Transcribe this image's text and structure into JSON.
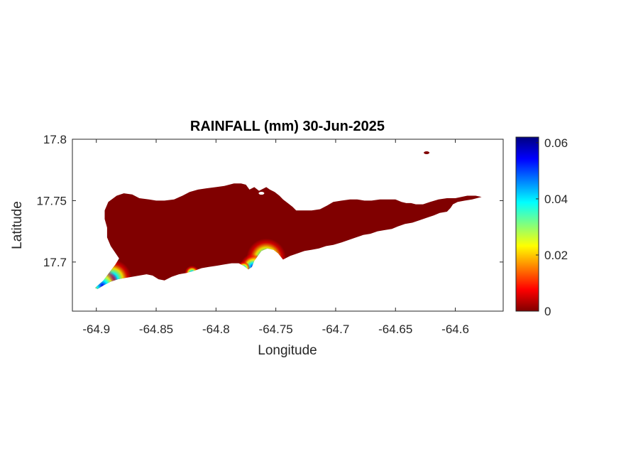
{
  "chart_data": {
    "type": "heatmap",
    "title": "RAINFALL (mm) 30-Jun-2025",
    "xlabel": "Longitude",
    "ylabel": "Latitude",
    "xlim": [
      -64.92,
      -64.56
    ],
    "ylim": [
      17.66,
      17.8
    ],
    "xticks": [
      -64.9,
      -64.85,
      -64.8,
      -64.75,
      -64.7,
      -64.65,
      -64.6
    ],
    "xtick_labels": [
      "-64.9",
      "-64.85",
      "-64.8",
      "-64.75",
      "-64.7",
      "-64.65",
      "-64.6"
    ],
    "yticks": [
      17.7,
      17.75,
      17.8
    ],
    "ytick_labels": [
      "17.7",
      "17.75",
      "17.8"
    ],
    "colorbar": {
      "min": 0,
      "max": 0.062,
      "ticks": [
        0,
        0.02,
        0.04,
        0.06
      ],
      "tick_labels": [
        "0",
        "0.02",
        "0.04",
        "0.06"
      ],
      "colormap": "jet"
    },
    "background_value": 0,
    "background_color": "#800000",
    "grid": false,
    "land_outline": [
      [
        -64.901,
        17.679
      ],
      [
        -64.894,
        17.685
      ],
      [
        -64.888,
        17.693
      ],
      [
        -64.884,
        17.698
      ],
      [
        -64.881,
        17.703
      ],
      [
        -64.888,
        17.713
      ],
      [
        -64.891,
        17.72
      ],
      [
        -64.891,
        17.728
      ],
      [
        -64.893,
        17.735
      ],
      [
        -64.893,
        17.742
      ],
      [
        -64.89,
        17.749
      ],
      [
        -64.883,
        17.754
      ],
      [
        -64.877,
        17.756
      ],
      [
        -64.87,
        17.755
      ],
      [
        -64.864,
        17.752
      ],
      [
        -64.856,
        17.751
      ],
      [
        -64.85,
        17.75
      ],
      [
        -64.843,
        17.75
      ],
      [
        -64.835,
        17.751
      ],
      [
        -64.828,
        17.754
      ],
      [
        -64.822,
        17.757
      ],
      [
        -64.815,
        17.759
      ],
      [
        -64.808,
        17.76
      ],
      [
        -64.8,
        17.761
      ],
      [
        -64.793,
        17.762
      ],
      [
        -64.785,
        17.764
      ],
      [
        -64.779,
        17.764
      ],
      [
        -64.775,
        17.763
      ],
      [
        -64.772,
        17.759
      ],
      [
        -64.768,
        17.761
      ],
      [
        -64.764,
        17.758
      ],
      [
        -64.758,
        17.761
      ],
      [
        -64.755,
        17.759
      ],
      [
        -64.751,
        17.757
      ],
      [
        -64.747,
        17.754
      ],
      [
        -64.744,
        17.751
      ],
      [
        -64.74,
        17.748
      ],
      [
        -64.736,
        17.745
      ],
      [
        -64.733,
        17.742
      ],
      [
        -64.725,
        17.742
      ],
      [
        -64.72,
        17.742
      ],
      [
        -64.713,
        17.743
      ],
      [
        -64.707,
        17.746
      ],
      [
        -64.702,
        17.749
      ],
      [
        -64.695,
        17.75
      ],
      [
        -64.688,
        17.751
      ],
      [
        -64.682,
        17.751
      ],
      [
        -64.676,
        17.75
      ],
      [
        -64.67,
        17.75
      ],
      [
        -64.663,
        17.751
      ],
      [
        -64.656,
        17.751
      ],
      [
        -64.65,
        17.751
      ],
      [
        -64.645,
        17.749
      ],
      [
        -64.641,
        17.748
      ],
      [
        -64.637,
        17.748
      ],
      [
        -64.633,
        17.747
      ],
      [
        -64.627,
        17.747
      ],
      [
        -64.621,
        17.749
      ],
      [
        -64.614,
        17.751
      ],
      [
        -64.607,
        17.752
      ],
      [
        -64.6,
        17.752
      ],
      [
        -64.595,
        17.753
      ],
      [
        -64.59,
        17.754
      ],
      [
        -64.583,
        17.754
      ],
      [
        -64.578,
        17.753
      ],
      [
        -64.582,
        17.752
      ],
      [
        -64.586,
        17.751
      ],
      [
        -64.592,
        17.75
      ],
      [
        -64.598,
        17.749
      ],
      [
        -64.602,
        17.747
      ],
      [
        -64.604,
        17.744
      ],
      [
        -64.607,
        17.741
      ],
      [
        -64.613,
        17.74
      ],
      [
        -64.618,
        17.738
      ],
      [
        -64.624,
        17.736
      ],
      [
        -64.63,
        17.734
      ],
      [
        -64.636,
        17.732
      ],
      [
        -64.642,
        17.731
      ],
      [
        -64.648,
        17.729
      ],
      [
        -64.653,
        17.727
      ],
      [
        -64.659,
        17.726
      ],
      [
        -64.665,
        17.725
      ],
      [
        -64.671,
        17.723
      ],
      [
        -64.677,
        17.722
      ],
      [
        -64.683,
        17.72
      ],
      [
        -64.689,
        17.718
      ],
      [
        -64.695,
        17.716
      ],
      [
        -64.702,
        17.714
      ],
      [
        -64.708,
        17.713
      ],
      [
        -64.714,
        17.711
      ],
      [
        -64.72,
        17.71
      ],
      [
        -64.726,
        17.709
      ],
      [
        -64.732,
        17.707
      ],
      [
        -64.738,
        17.705
      ],
      [
        -64.744,
        17.702
      ],
      [
        -64.748,
        17.707
      ],
      [
        -64.752,
        17.71
      ],
      [
        -64.757,
        17.711
      ],
      [
        -64.762,
        17.709
      ],
      [
        -64.765,
        17.705
      ],
      [
        -64.768,
        17.701
      ],
      [
        -64.77,
        17.696
      ],
      [
        -64.773,
        17.694
      ],
      [
        -64.777,
        17.697
      ],
      [
        -64.781,
        17.699
      ],
      [
        -64.787,
        17.699
      ],
      [
        -64.793,
        17.698
      ],
      [
        -64.799,
        17.697
      ],
      [
        -64.806,
        17.696
      ],
      [
        -64.812,
        17.695
      ],
      [
        -64.818,
        17.693
      ],
      [
        -64.825,
        17.691
      ],
      [
        -64.831,
        17.69
      ],
      [
        -64.837,
        17.688
      ],
      [
        -64.843,
        17.685
      ],
      [
        -64.848,
        17.686
      ],
      [
        -64.853,
        17.689
      ],
      [
        -64.858,
        17.69
      ],
      [
        -64.864,
        17.689
      ],
      [
        -64.87,
        17.688
      ],
      [
        -64.876,
        17.687
      ],
      [
        -64.882,
        17.686
      ],
      [
        -64.888,
        17.684
      ],
      [
        -64.894,
        17.681
      ],
      [
        -64.899,
        17.678
      ]
    ],
    "islets": [
      {
        "lon": -64.624,
        "lat": 17.789
      },
      {
        "lon": -64.762,
        "lat": 17.756
      }
    ],
    "hotspots": [
      {
        "lon": -64.887,
        "lat": 17.686,
        "value": 0.062
      },
      {
        "lon": -64.895,
        "lat": 17.681,
        "value": 0.05
      },
      {
        "lon": -64.758,
        "lat": 17.703,
        "value": 0.062
      },
      {
        "lon": -64.769,
        "lat": 17.696,
        "value": 0.035
      },
      {
        "lon": -64.82,
        "lat": 17.691,
        "value": 0.012
      },
      {
        "lon": -64.777,
        "lat": 17.695,
        "value": 0.01
      }
    ]
  }
}
